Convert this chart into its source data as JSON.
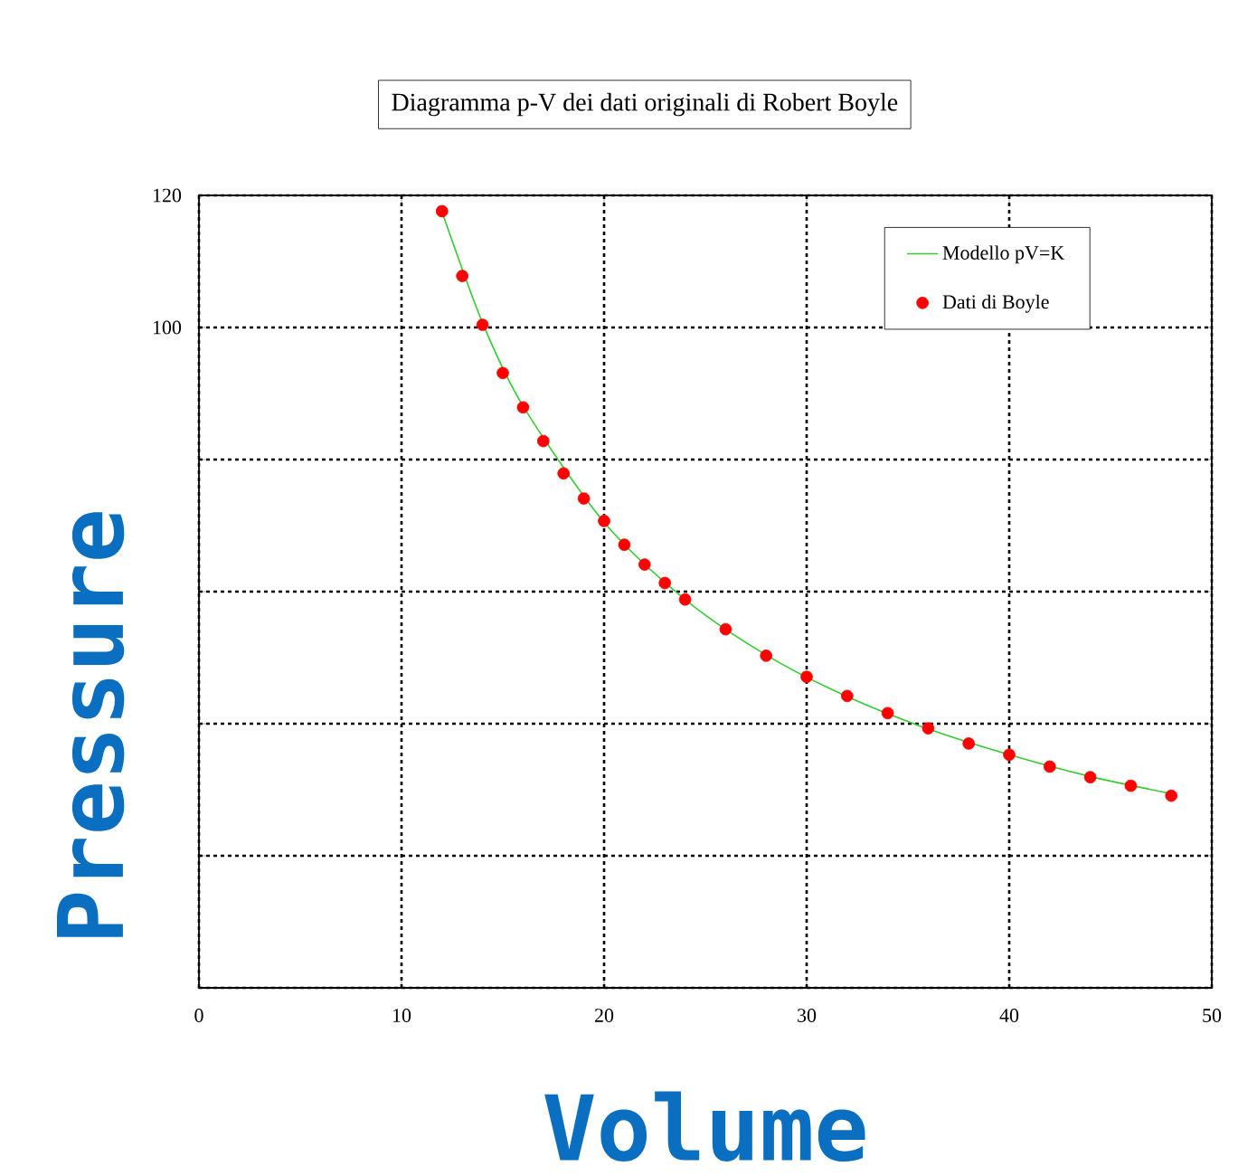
{
  "chart_data": {
    "type": "scatter",
    "title": "Diagramma p-V dei dati originali di Robert Boyle",
    "xlabel": "Volume",
    "ylabel": "Pressure",
    "xlim": [
      0,
      50
    ],
    "xticks": [
      0,
      10,
      20,
      30,
      40,
      50
    ],
    "ylim": [
      0,
      120
    ],
    "yticks": [
      {
        "value": 0,
        "label": null
      },
      {
        "value": 20,
        "label": null
      },
      {
        "value": 40,
        "label": null
      },
      {
        "value": 60,
        "label": null
      },
      {
        "value": 80,
        "label": null
      },
      100,
      120
    ],
    "grid": true,
    "legend": "top right",
    "series": [
      {
        "name": "Modello pV=K",
        "type": "line",
        "color": "#33cc33",
        "marker": "none",
        "line_style": "solid",
        "x": [
          12,
          14,
          16,
          20,
          24,
          28,
          32,
          36,
          40,
          44,
          48
        ],
        "values": [
          117.5,
          100.7,
          88.1,
          70.5,
          58.8,
          50.4,
          44.1,
          39.2,
          35.3,
          32.0,
          29.4
        ]
      },
      {
        "name": "Dati di Boyle",
        "color": "#ff0000",
        "marker": "circle",
        "x": [
          12,
          13,
          14,
          15,
          16,
          17,
          18,
          19,
          20,
          21,
          22,
          23,
          24,
          26,
          28,
          30,
          32,
          34,
          36,
          38,
          40,
          42,
          44,
          46,
          48
        ],
        "values": [
          117.6,
          107.8,
          100.4,
          93.1,
          87.9,
          82.8,
          77.9,
          74.1,
          70.7,
          67.1,
          64.1,
          61.3,
          58.8,
          54.3,
          50.3,
          47.1,
          44.2,
          41.6,
          39.3,
          37.0,
          35.3,
          33.5,
          31.9,
          30.6,
          29.1
        ]
      }
    ]
  }
}
